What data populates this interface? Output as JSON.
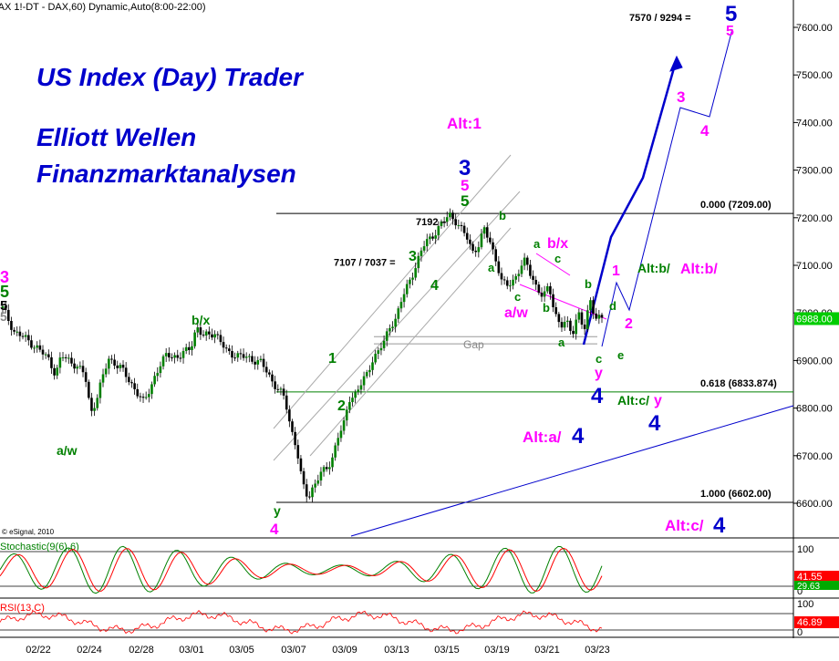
{
  "header": {
    "title": "(AX 1!-DT - DAX,60) Dynamic,Auto(8:00-22:00)",
    "target_label": "7570 / 9294 =",
    "copyright": "© eSignal, 2010"
  },
  "branding": {
    "line1": "US Index (Day) Trader",
    "line2": "Elliott Wellen",
    "line3": "Finanzmarktanalysen"
  },
  "colors": {
    "up_candle": "#008000",
    "down_candle": "#000000",
    "blue": "#0000cc",
    "magenta": "#ff00ff",
    "green": "#008000",
    "last_price_bg": "#00cc00",
    "stoch_k": "#008000",
    "stoch_d": "#ff0000",
    "rsi": "#ff0000"
  },
  "chart_data": {
    "type": "candlestick",
    "symbol": "DAX",
    "interval": "60",
    "x_labels": [
      "02/22",
      "02/24",
      "02/28",
      "03/01",
      "03/05",
      "03/07",
      "03/09",
      "03/13",
      "03/15",
      "03/19",
      "03/21",
      "03/23"
    ],
    "y_ticks": [
      6600,
      6700,
      6800,
      6900,
      7000,
      7100,
      7200,
      7300,
      7400,
      7500,
      7600
    ],
    "y_tick_labels": [
      "6600.00",
      "6700.00",
      "6800.00",
      "6900.00",
      "7000.00",
      "7100.00",
      "7200.00",
      "7300.00",
      "7400.00",
      "7500.00",
      "7600.00"
    ],
    "ylim": [
      6540,
      7680
    ],
    "last_price": 6988,
    "last_price_label": "6988.00",
    "price_path": [
      [
        0,
        7010
      ],
      [
        2,
        6960
      ],
      [
        4,
        6945
      ],
      [
        6,
        6925
      ],
      [
        8,
        6900
      ],
      [
        9,
        6870
      ],
      [
        10,
        6910
      ],
      [
        12,
        6895
      ],
      [
        14,
        6870
      ],
      [
        15,
        6790
      ],
      [
        16,
        6820
      ],
      [
        18,
        6905
      ],
      [
        20,
        6885
      ],
      [
        22,
        6850
      ],
      [
        24,
        6810
      ],
      [
        26,
        6870
      ],
      [
        28,
        6915
      ],
      [
        30,
        6905
      ],
      [
        32,
        6930
      ],
      [
        33,
        6970
      ],
      [
        34,
        6950
      ],
      [
        36,
        6960
      ],
      [
        38,
        6920
      ],
      [
        40,
        6910
      ],
      [
        42,
        6905
      ],
      [
        44,
        6895
      ],
      [
        46,
        6855
      ],
      [
        48,
        6820
      ],
      [
        49,
        6760
      ],
      [
        50,
        6720
      ],
      [
        51,
        6640
      ],
      [
        52,
        6610
      ],
      [
        53,
        6640
      ],
      [
        54,
        6660
      ],
      [
        55,
        6670
      ],
      [
        56,
        6690
      ],
      [
        57,
        6740
      ],
      [
        58,
        6760
      ],
      [
        59,
        6820
      ],
      [
        60,
        6830
      ],
      [
        61,
        6850
      ],
      [
        62,
        6870
      ],
      [
        63,
        6905
      ],
      [
        64,
        6920
      ],
      [
        65,
        6940
      ],
      [
        66,
        6975
      ],
      [
        67,
        6990
      ],
      [
        68,
        7030
      ],
      [
        69,
        7060
      ],
      [
        70,
        7090
      ],
      [
        71,
        7120
      ],
      [
        72,
        7150
      ],
      [
        73,
        7160
      ],
      [
        74,
        7175
      ],
      [
        75,
        7190
      ],
      [
        76,
        7209
      ],
      [
        77,
        7195
      ],
      [
        78,
        7175
      ],
      [
        79,
        7160
      ],
      [
        80,
        7130
      ],
      [
        81,
        7140
      ],
      [
        82,
        7175
      ],
      [
        83,
        7150
      ],
      [
        84,
        7110
      ],
      [
        85,
        7060
      ],
      [
        86,
        7060
      ],
      [
        87,
        7070
      ],
      [
        88,
        7090
      ],
      [
        89,
        7110
      ],
      [
        90,
        7080
      ],
      [
        91,
        7050
      ],
      [
        92,
        7030
      ],
      [
        93,
        7060
      ],
      [
        94,
        7000
      ],
      [
        95,
        6970
      ],
      [
        96,
        6980
      ],
      [
        97,
        6960
      ],
      [
        98,
        7000
      ],
      [
        99,
        6960
      ],
      [
        100,
        7030
      ],
      [
        101,
        6990
      ],
      [
        102,
        6988
      ]
    ],
    "fib_levels": [
      {
        "label": "0.000 (7209.00)",
        "value": 7209,
        "color": "#000000"
      },
      {
        "label": "0.618 (6833.874)",
        "value": 6833.874,
        "color": "#008000"
      },
      {
        "label": "1.000 (6602.00)",
        "value": 6602,
        "color": "#000000"
      }
    ],
    "gap": {
      "label": "Gap",
      "from": 6935,
      "to": 6950
    },
    "price_annotations": [
      {
        "text": "7192 –",
        "value": 7192
      },
      {
        "text": "7107 / 7037 =",
        "value": 7107
      }
    ],
    "wave_labels": [
      {
        "text": "3",
        "color": "#ff00ff"
      },
      {
        "text": "5",
        "color": "#008000"
      },
      {
        "text": "5",
        "color": "#000000"
      },
      {
        "text": "5",
        "color": "#888888"
      },
      {
        "text": "a/w",
        "color": "#008000"
      },
      {
        "text": "b/x",
        "color": "#008000"
      },
      {
        "text": "y",
        "color": "#008000"
      },
      {
        "text": "4",
        "color": "#ff00ff"
      },
      {
        "text": "1",
        "color": "#008000"
      },
      {
        "text": "2",
        "color": "#008000"
      },
      {
        "text": "3",
        "color": "#008000"
      },
      {
        "text": "4",
        "color": "#008000"
      },
      {
        "text": "5",
        "color": "#008000"
      },
      {
        "text": "5",
        "color": "#ff00ff"
      },
      {
        "text": "3",
        "color": "#0000cc"
      },
      {
        "text": "Alt:1",
        "color": "#ff00ff"
      },
      {
        "text": "a",
        "color": "#008000"
      },
      {
        "text": "b",
        "color": "#008000"
      },
      {
        "text": "c",
        "color": "#008000"
      },
      {
        "text": "a/w",
        "color": "#ff00ff"
      },
      {
        "text": "a",
        "color": "#008000"
      },
      {
        "text": "c",
        "color": "#008000"
      },
      {
        "text": "b",
        "color": "#008000"
      },
      {
        "text": "b/x",
        "color": "#ff00ff"
      },
      {
        "text": "a",
        "color": "#008000"
      },
      {
        "text": "b",
        "color": "#008000"
      },
      {
        "text": "c",
        "color": "#008000"
      },
      {
        "text": "d",
        "color": "#008000"
      },
      {
        "text": "e",
        "color": "#008000"
      },
      {
        "text": "y",
        "color": "#ff00ff"
      },
      {
        "text": "4",
        "color": "#0000cc"
      },
      {
        "text": "Alt:c/",
        "color": "#008000"
      },
      {
        "text": "y",
        "color": "#ff00ff"
      },
      {
        "text": "4",
        "color": "#0000cc"
      },
      {
        "text": "Alt:a/",
        "color": "#ff00ff"
      },
      {
        "text": "4",
        "color": "#0000cc"
      },
      {
        "text": "1",
        "color": "#ff00ff"
      },
      {
        "text": "2",
        "color": "#ff00ff"
      },
      {
        "text": "Alt:b/",
        "color": "#008000"
      },
      {
        "text": "Alt:b/",
        "color": "#ff00ff"
      },
      {
        "text": "3",
        "color": "#ff00ff"
      },
      {
        "text": "4",
        "color": "#ff00ff"
      },
      {
        "text": "5",
        "color": "#0000cc"
      },
      {
        "text": "5",
        "color": "#ff00ff"
      },
      {
        "text": "Alt:c/",
        "color": "#ff00ff"
      },
      {
        "text": "4",
        "color": "#0000cc"
      }
    ],
    "stochastic": {
      "label": "Stochastic(9(6),6)",
      "ticks": [
        0,
        100
      ],
      "tick_labels": [
        "0",
        "100"
      ],
      "last_k_label": "41.55",
      "last_d_label": "29.63"
    },
    "rsi": {
      "label": "RSI(13,C)",
      "ticks": [
        0,
        100
      ],
      "tick_labels": [
        "0",
        "100"
      ],
      "last_label": "46.89"
    }
  }
}
